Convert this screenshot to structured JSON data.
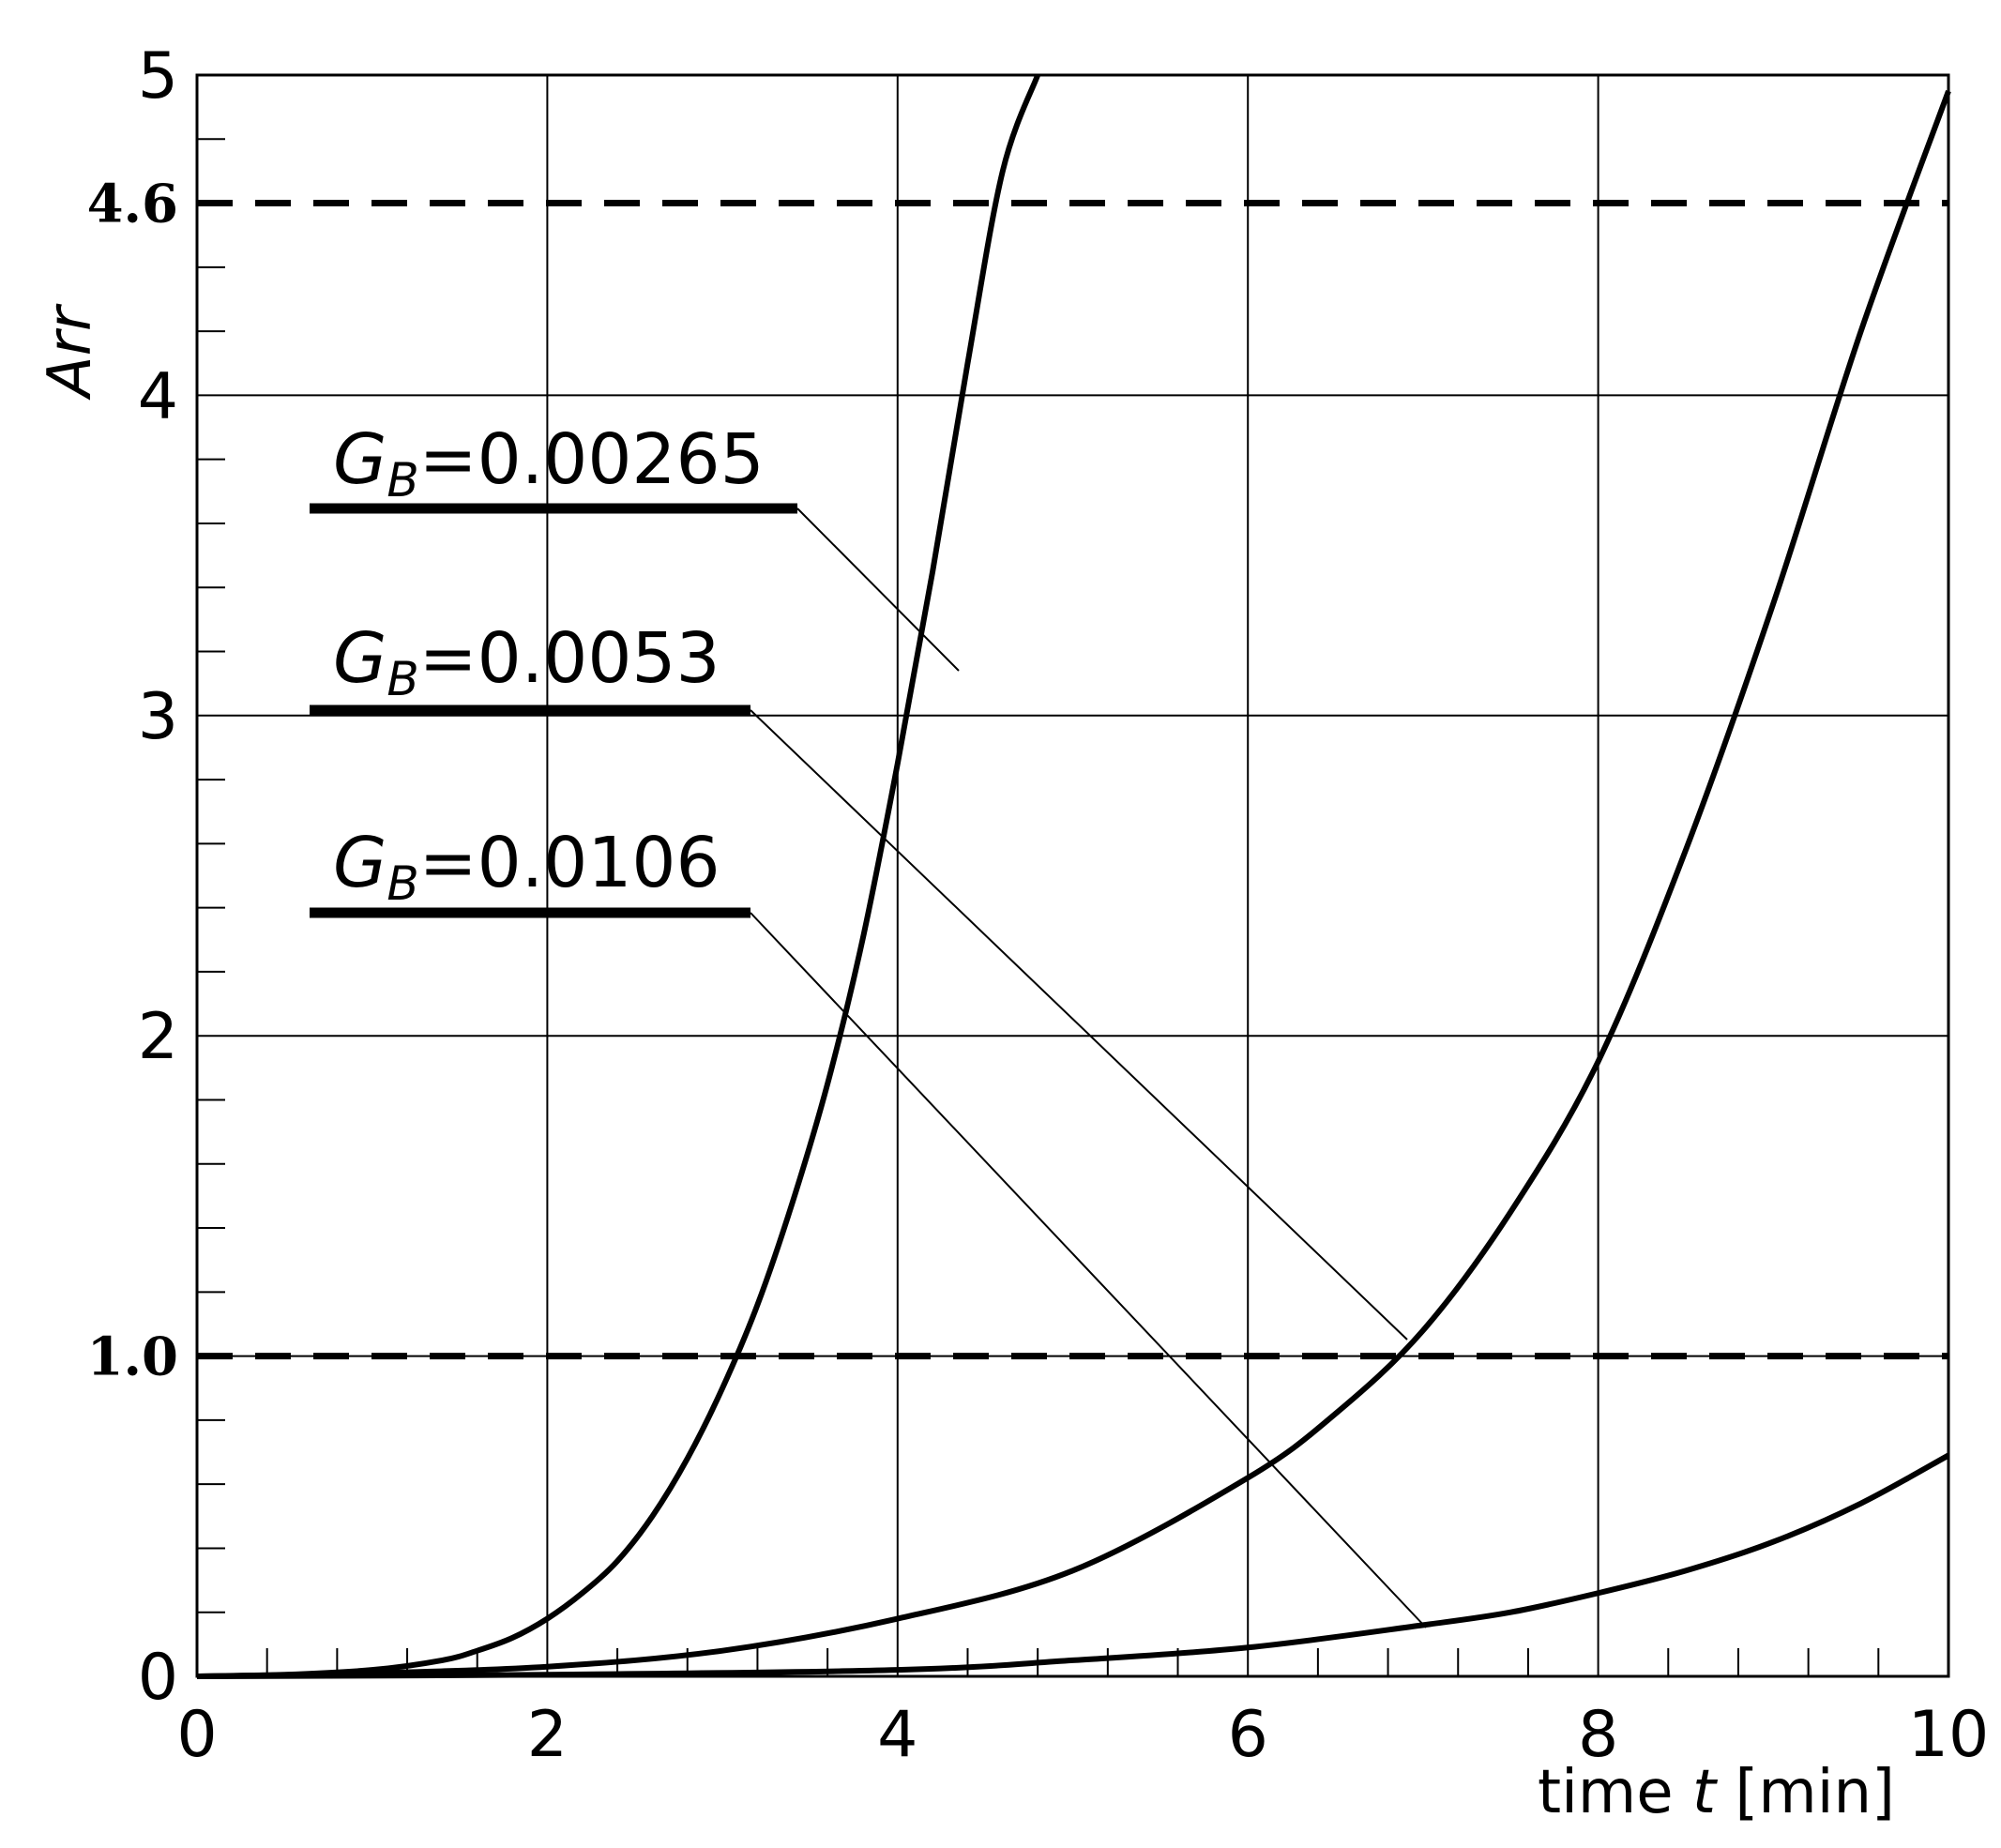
{
  "chart_data": {
    "type": "line",
    "xlabel": {
      "pre": "time ",
      "var": "t",
      "post": " [min]"
    },
    "ylabel": "Arr",
    "xlim": [
      0,
      10
    ],
    "ylim": [
      0,
      5
    ],
    "x_ticks": [
      "0",
      "2",
      "4",
      "6",
      "8",
      "10"
    ],
    "y_ticks": [
      "0",
      "2",
      "3",
      "4",
      "5"
    ],
    "grid": true,
    "reference_lines": [
      {
        "y": 4.6,
        "label": "4.6",
        "style": "dashed"
      },
      {
        "y": 1.0,
        "label": "1.0",
        "style": "dashed"
      }
    ],
    "series": [
      {
        "name": "G_B=0.00265",
        "label_main": "G",
        "label_sub": "B",
        "label_value": "=0.00265",
        "x": [
          0,
          0.5,
          1.0,
          1.4,
          1.6,
          1.8,
          2.0,
          2.2,
          2.4,
          2.6,
          2.8,
          3.0,
          3.2,
          3.4,
          3.6,
          3.8,
          4.0,
          4.2,
          4.4,
          4.6,
          4.8
        ],
        "y": [
          0,
          0.005,
          0.02,
          0.05,
          0.08,
          0.12,
          0.18,
          0.26,
          0.36,
          0.5,
          0.68,
          0.9,
          1.16,
          1.48,
          1.85,
          2.3,
          2.85,
          3.45,
          4.1,
          4.7,
          5.0
        ]
      },
      {
        "name": "G_B=0.0053",
        "label_main": "G",
        "label_sub": "B",
        "label_value": "=0.0053",
        "x": [
          0,
          1,
          2,
          3,
          4,
          5,
          6,
          6.5,
          7,
          7.5,
          8,
          8.5,
          9,
          9.5,
          10
        ],
        "y": [
          0,
          0.01,
          0.03,
          0.08,
          0.18,
          0.33,
          0.62,
          0.82,
          1.08,
          1.45,
          1.92,
          2.58,
          3.35,
          4.2,
          4.95
        ]
      },
      {
        "name": "G_B=0.0106",
        "label_main": "G",
        "label_sub": "B",
        "label_value": "=0.0106",
        "x": [
          0,
          2,
          4,
          5,
          6,
          7,
          7.5,
          8,
          8.5,
          9,
          9.5,
          10
        ],
        "y": [
          0,
          0.005,
          0.02,
          0.05,
          0.09,
          0.16,
          0.2,
          0.26,
          0.33,
          0.42,
          0.54,
          0.69
        ]
      }
    ]
  }
}
